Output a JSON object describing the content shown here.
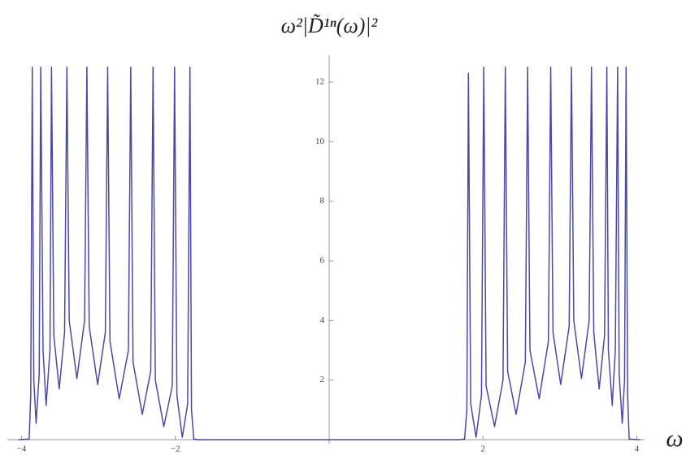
{
  "chart_data": {
    "type": "line",
    "title": "ω²|D̃¹ⁿ(ω)|²",
    "x_label": "ω",
    "xlim": [
      -4.1,
      4.1
    ],
    "ylim": [
      0,
      12.9
    ],
    "xticks": [
      {
        "value": -4,
        "label": "−4"
      },
      {
        "value": -2,
        "label": "−2"
      },
      2,
      4
    ],
    "yticks": [
      2,
      4,
      6,
      8,
      10,
      12
    ],
    "series": [
      {
        "color": "#4a4aa6",
        "x": [
          -4.04,
          -3.9,
          -3.88,
          -3.86,
          -3.84,
          -3.81,
          -3.77,
          -3.75,
          -3.72,
          -3.68,
          -3.63,
          -3.61,
          -3.58,
          -3.51,
          -3.44,
          -3.41,
          -3.38,
          -3.28,
          -3.18,
          -3.15,
          -3.12,
          -3.01,
          -2.91,
          -2.88,
          -2.85,
          -2.73,
          -2.61,
          -2.58,
          -2.55,
          -2.43,
          -2.32,
          -2.29,
          -2.26,
          -2.15,
          -2.04,
          -2.01,
          -1.98,
          -1.91,
          -1.84,
          -1.81,
          -1.79,
          -1.76,
          -1.7,
          1.7,
          1.76,
          1.79,
          1.81,
          1.84,
          1.91,
          1.98,
          2.01,
          2.04,
          2.15,
          2.26,
          2.29,
          2.32,
          2.43,
          2.55,
          2.58,
          2.61,
          2.73,
          2.85,
          2.88,
          2.91,
          3.01,
          3.12,
          3.15,
          3.18,
          3.28,
          3.38,
          3.41,
          3.44,
          3.51,
          3.58,
          3.61,
          3.63,
          3.68,
          3.72,
          3.75,
          3.77,
          3.81,
          3.84,
          3.86,
          3.88,
          3.9,
          4.04
        ],
        "values": [
          0,
          0.02,
          1.5,
          12.5,
          2.0,
          0.55,
          2.2,
          12.5,
          3.0,
          1.15,
          3.0,
          12.5,
          3.5,
          1.7,
          3.6,
          12.5,
          4.0,
          2.05,
          4.0,
          12.5,
          3.8,
          1.85,
          3.6,
          12.5,
          3.3,
          1.37,
          3.0,
          12.5,
          2.6,
          0.85,
          2.3,
          12.5,
          2.0,
          0.44,
          1.8,
          12.5,
          1.5,
          0.08,
          1.2,
          12.5,
          1.0,
          0.02,
          0,
          0,
          0.02,
          1.0,
          12.3,
          1.2,
          0.08,
          1.5,
          12.5,
          1.8,
          0.44,
          2.0,
          12.5,
          2.3,
          0.85,
          2.6,
          12.5,
          3.0,
          1.37,
          3.3,
          12.5,
          3.6,
          1.85,
          3.8,
          12.5,
          4.0,
          2.05,
          4.0,
          12.5,
          3.6,
          1.7,
          3.5,
          12.5,
          3.0,
          1.15,
          3.0,
          12.5,
          2.2,
          0.55,
          2.0,
          12.5,
          1.5,
          0.02,
          0
        ]
      }
    ]
  }
}
